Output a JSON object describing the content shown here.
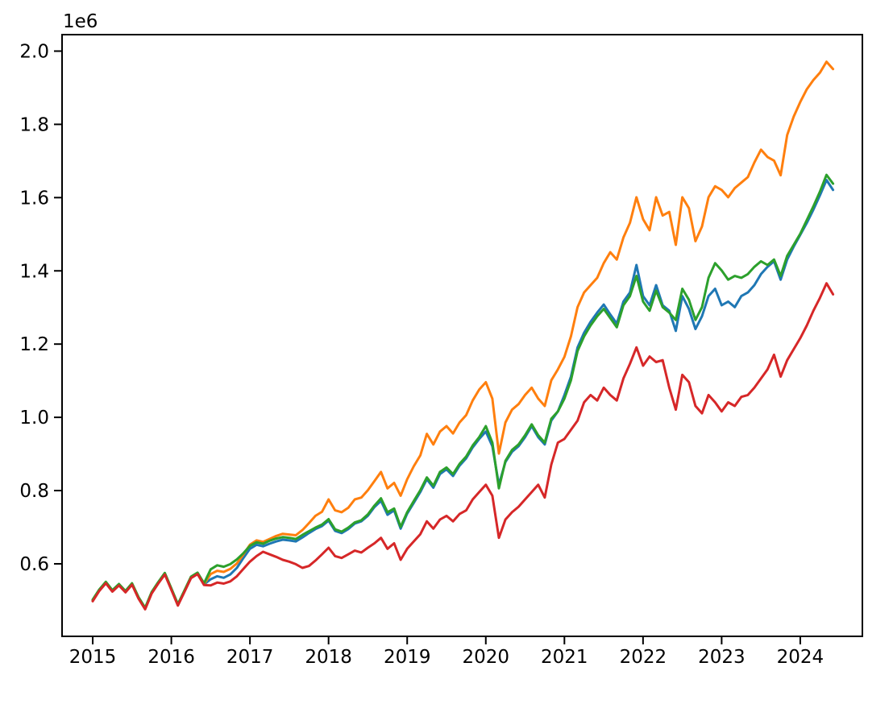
{
  "figure": {
    "background": "#ffffff",
    "offset_label": "1e6"
  },
  "chart_data": {
    "type": "line",
    "title": "",
    "xlabel": "",
    "ylabel": "",
    "grid": false,
    "legend": "none",
    "values_unit": "1e6 (axis shows offset label 1e6)",
    "x_axis": {
      "ticks": [
        2015,
        2016,
        2017,
        2018,
        2019,
        2020,
        2021,
        2022,
        2023,
        2024
      ],
      "tick_labels": [
        "2015",
        "2016",
        "2017",
        "2018",
        "2019",
        "2020",
        "2021",
        "2022",
        "2023",
        "2024"
      ],
      "lim": [
        2014.61,
        2024.79
      ],
      "unit": "year"
    },
    "y_axis": {
      "ticks": [
        0.6,
        0.8,
        1.0,
        1.2,
        1.4,
        1.6,
        1.8,
        2.0
      ],
      "tick_labels": [
        "0.6",
        "0.8",
        "1.0",
        "1.2",
        "1.4",
        "1.6",
        "1.8",
        "2.0"
      ],
      "lim": [
        0.402,
        2.045
      ]
    },
    "x": {
      "start_year": 2015.0,
      "step_years": 0.0833333,
      "count": 114,
      "note": "monthly points, Jan 2015 - Jun 2024"
    },
    "series": [
      {
        "name": "blue-line",
        "color": "#1f77b4",
        "values": [
          0.5,
          0.528,
          0.549,
          0.526,
          0.543,
          0.524,
          0.545,
          0.507,
          0.478,
          0.521,
          0.548,
          0.573,
          0.531,
          0.488,
          0.525,
          0.563,
          0.574,
          0.544,
          0.558,
          0.566,
          0.562,
          0.571,
          0.589,
          0.616,
          0.641,
          0.652,
          0.648,
          0.655,
          0.661,
          0.666,
          0.664,
          0.661,
          0.672,
          0.684,
          0.695,
          0.703,
          0.718,
          0.69,
          0.684,
          0.695,
          0.71,
          0.716,
          0.731,
          0.755,
          0.772,
          0.734,
          0.746,
          0.696,
          0.737,
          0.766,
          0.796,
          0.831,
          0.808,
          0.845,
          0.858,
          0.84,
          0.868,
          0.888,
          0.918,
          0.941,
          0.961,
          0.921,
          0.816,
          0.878,
          0.906,
          0.921,
          0.946,
          0.976,
          0.946,
          0.926,
          0.991,
          1.016,
          1.061,
          1.111,
          1.191,
          1.231,
          1.261,
          1.286,
          1.308,
          1.281,
          1.256,
          1.316,
          1.341,
          1.416,
          1.331,
          1.306,
          1.361,
          1.306,
          1.291,
          1.236,
          1.331,
          1.296,
          1.241,
          1.276,
          1.331,
          1.351,
          1.306,
          1.316,
          1.301,
          1.331,
          1.341,
          1.361,
          1.391,
          1.411,
          1.426,
          1.376,
          1.431,
          1.466,
          1.498,
          1.531,
          1.567,
          1.606,
          1.648,
          1.621
        ]
      },
      {
        "name": "orange-line",
        "color": "#ff7f0e",
        "values": [
          0.501,
          0.529,
          0.55,
          0.527,
          0.544,
          0.525,
          0.546,
          0.508,
          0.479,
          0.522,
          0.549,
          0.574,
          0.532,
          0.489,
          0.526,
          0.564,
          0.575,
          0.545,
          0.572,
          0.581,
          0.578,
          0.586,
          0.601,
          0.626,
          0.652,
          0.664,
          0.66,
          0.668,
          0.676,
          0.682,
          0.68,
          0.678,
          0.692,
          0.711,
          0.731,
          0.742,
          0.776,
          0.746,
          0.741,
          0.753,
          0.776,
          0.781,
          0.801,
          0.826,
          0.851,
          0.806,
          0.821,
          0.786,
          0.831,
          0.866,
          0.896,
          0.955,
          0.926,
          0.961,
          0.976,
          0.956,
          0.986,
          1.006,
          1.046,
          1.076,
          1.096,
          1.051,
          0.901,
          0.986,
          1.021,
          1.036,
          1.061,
          1.081,
          1.051,
          1.031,
          1.101,
          1.131,
          1.165,
          1.221,
          1.301,
          1.341,
          1.361,
          1.381,
          1.421,
          1.451,
          1.431,
          1.491,
          1.531,
          1.601,
          1.541,
          1.511,
          1.601,
          1.551,
          1.561,
          1.471,
          1.601,
          1.571,
          1.481,
          1.521,
          1.601,
          1.631,
          1.621,
          1.601,
          1.626,
          1.641,
          1.656,
          1.696,
          1.731,
          1.711,
          1.701,
          1.661,
          1.771,
          1.821,
          1.861,
          1.896,
          1.921,
          1.941,
          1.971,
          1.951
        ]
      },
      {
        "name": "green-line",
        "color": "#2ca02c",
        "values": [
          0.502,
          0.53,
          0.551,
          0.528,
          0.545,
          0.526,
          0.547,
          0.509,
          0.48,
          0.523,
          0.55,
          0.575,
          0.533,
          0.49,
          0.527,
          0.565,
          0.576,
          0.547,
          0.585,
          0.596,
          0.592,
          0.599,
          0.612,
          0.629,
          0.649,
          0.659,
          0.655,
          0.663,
          0.669,
          0.673,
          0.671,
          0.668,
          0.679,
          0.689,
          0.699,
          0.707,
          0.722,
          0.694,
          0.688,
          0.699,
          0.713,
          0.719,
          0.735,
          0.759,
          0.779,
          0.741,
          0.751,
          0.701,
          0.741,
          0.771,
          0.801,
          0.836,
          0.813,
          0.851,
          0.863,
          0.845,
          0.873,
          0.893,
          0.923,
          0.946,
          0.976,
          0.931,
          0.806,
          0.881,
          0.911,
          0.926,
          0.951,
          0.981,
          0.951,
          0.931,
          0.996,
          1.016,
          1.051,
          1.101,
          1.181,
          1.221,
          1.251,
          1.276,
          1.296,
          1.271,
          1.246,
          1.306,
          1.331,
          1.386,
          1.316,
          1.291,
          1.346,
          1.301,
          1.286,
          1.266,
          1.351,
          1.321,
          1.266,
          1.301,
          1.381,
          1.421,
          1.401,
          1.376,
          1.386,
          1.381,
          1.391,
          1.411,
          1.426,
          1.416,
          1.431,
          1.386,
          1.441,
          1.471,
          1.501,
          1.539,
          1.576,
          1.616,
          1.662,
          1.638
        ]
      },
      {
        "name": "red-line",
        "color": "#d62728",
        "values": [
          0.498,
          0.526,
          0.547,
          0.524,
          0.541,
          0.522,
          0.543,
          0.505,
          0.476,
          0.519,
          0.546,
          0.571,
          0.529,
          0.486,
          0.523,
          0.561,
          0.572,
          0.542,
          0.541,
          0.549,
          0.546,
          0.552,
          0.566,
          0.586,
          0.606,
          0.621,
          0.633,
          0.626,
          0.619,
          0.611,
          0.606,
          0.599,
          0.589,
          0.594,
          0.609,
          0.626,
          0.644,
          0.621,
          0.616,
          0.626,
          0.636,
          0.631,
          0.644,
          0.656,
          0.671,
          0.641,
          0.656,
          0.611,
          0.641,
          0.661,
          0.681,
          0.716,
          0.696,
          0.721,
          0.731,
          0.716,
          0.736,
          0.746,
          0.776,
          0.796,
          0.816,
          0.786,
          0.671,
          0.721,
          0.741,
          0.756,
          0.776,
          0.796,
          0.816,
          0.781,
          0.871,
          0.931,
          0.941,
          0.966,
          0.991,
          1.041,
          1.061,
          1.046,
          1.081,
          1.061,
          1.046,
          1.106,
          1.146,
          1.191,
          1.141,
          1.166,
          1.151,
          1.156,
          1.081,
          1.021,
          1.116,
          1.096,
          1.031,
          1.011,
          1.061,
          1.041,
          1.016,
          1.041,
          1.031,
          1.056,
          1.061,
          1.081,
          1.106,
          1.131,
          1.171,
          1.111,
          1.156,
          1.186,
          1.216,
          1.251,
          1.291,
          1.326,
          1.366,
          1.336
        ]
      }
    ]
  }
}
